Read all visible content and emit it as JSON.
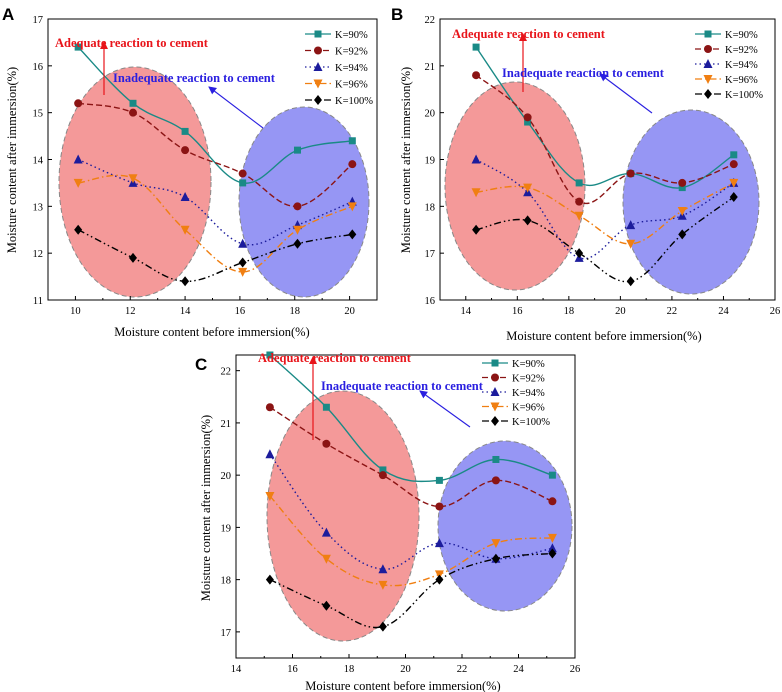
{
  "chart_data": [
    {
      "type": "line",
      "panel_label": "A",
      "xlabel": "Moisture content before immersion(%)",
      "ylabel": "Moisture content after immersion(%)",
      "xlim": [
        9,
        21
      ],
      "ylim": [
        11,
        17
      ],
      "xticks": [
        10,
        12,
        14,
        16,
        18,
        20
      ],
      "yticks": [
        11,
        12,
        13,
        14,
        15,
        16,
        17
      ],
      "annotations": {
        "red": "Adequate reaction to cement",
        "blue": "Inadequate reaction to cement"
      },
      "series": [
        {
          "name": "K=90%",
          "x": [
            10.1,
            12.1,
            14.0,
            16.1,
            18.1,
            20.1
          ],
          "values": [
            16.4,
            15.2,
            14.6,
            13.5,
            14.2,
            14.4
          ]
        },
        {
          "name": "K=92%",
          "x": [
            10.1,
            12.1,
            14.0,
            16.1,
            18.1,
            20.1
          ],
          "values": [
            15.2,
            15.0,
            14.2,
            13.7,
            13.0,
            13.9
          ]
        },
        {
          "name": "K=94%",
          "x": [
            10.1,
            12.1,
            14.0,
            16.1,
            18.1,
            20.1
          ],
          "values": [
            14.0,
            13.5,
            13.2,
            12.2,
            12.6,
            13.1
          ]
        },
        {
          "name": "K=96%",
          "x": [
            10.1,
            12.1,
            14.0,
            16.1,
            18.1,
            20.1
          ],
          "values": [
            13.5,
            13.6,
            12.5,
            11.6,
            12.5,
            13.0
          ]
        },
        {
          "name": "K=100%",
          "x": [
            10.1,
            12.1,
            14.0,
            16.1,
            18.1,
            20.1
          ],
          "values": [
            12.5,
            11.9,
            11.4,
            11.8,
            12.2,
            12.4
          ]
        }
      ]
    },
    {
      "type": "line",
      "panel_label": "B",
      "xlabel": "Moisture content before immersion(%)",
      "ylabel": "Moisture content after immersion(%)",
      "xlim": [
        13,
        26
      ],
      "ylim": [
        16,
        22
      ],
      "xticks": [
        14,
        16,
        18,
        20,
        22,
        24,
        26
      ],
      "yticks": [
        16,
        17,
        18,
        19,
        20,
        21,
        22
      ],
      "annotations": {
        "red": "Adequate reaction to cement",
        "blue": "Inadequate reaction to cement"
      },
      "series": [
        {
          "name": "K=90%",
          "x": [
            14.4,
            16.4,
            18.4,
            20.4,
            22.4,
            24.4
          ],
          "values": [
            21.4,
            19.8,
            18.5,
            18.7,
            18.4,
            19.1
          ]
        },
        {
          "name": "K=92%",
          "x": [
            14.4,
            16.4,
            18.4,
            20.4,
            22.4,
            24.4
          ],
          "values": [
            20.8,
            19.9,
            18.1,
            18.7,
            18.5,
            18.9
          ]
        },
        {
          "name": "K=94%",
          "x": [
            14.4,
            16.4,
            18.4,
            20.4,
            22.4,
            24.4
          ],
          "values": [
            19.0,
            18.3,
            16.9,
            17.6,
            17.8,
            18.5
          ]
        },
        {
          "name": "K=96%",
          "x": [
            14.4,
            16.4,
            18.4,
            20.4,
            22.4,
            24.4
          ],
          "values": [
            18.3,
            18.4,
            17.8,
            17.2,
            17.9,
            18.5
          ]
        },
        {
          "name": "K=100%",
          "x": [
            14.4,
            16.4,
            18.4,
            20.4,
            22.4,
            24.4
          ],
          "values": [
            17.5,
            17.7,
            17.0,
            16.4,
            17.4,
            18.2
          ]
        }
      ]
    },
    {
      "type": "line",
      "panel_label": "C",
      "xlabel": "Moisture content before immersion(%)",
      "ylabel": "Moisture content after immersion(%)",
      "xlim": [
        14,
        26
      ],
      "ylim": [
        16.5,
        22.3
      ],
      "xticks": [
        14,
        16,
        18,
        20,
        22,
        24,
        26
      ],
      "yticks": [
        17,
        18,
        19,
        20,
        21,
        22
      ],
      "annotations": {
        "red": "Adequate reaction to cement",
        "blue": "Inadequate reaction to cement"
      },
      "series": [
        {
          "name": "K=90%",
          "x": [
            15.2,
            17.2,
            19.2,
            21.2,
            23.2,
            25.2
          ],
          "values": [
            22.3,
            21.3,
            20.1,
            19.9,
            20.3,
            20.0
          ]
        },
        {
          "name": "K=92%",
          "x": [
            15.2,
            17.2,
            19.2,
            21.2,
            23.2,
            25.2
          ],
          "values": [
            21.3,
            20.6,
            20.0,
            19.4,
            19.9,
            19.5
          ]
        },
        {
          "name": "K=94%",
          "x": [
            15.2,
            17.2,
            19.2,
            21.2,
            23.2,
            25.2
          ],
          "values": [
            20.4,
            18.9,
            18.2,
            18.7,
            18.4,
            18.6
          ]
        },
        {
          "name": "K=96%",
          "x": [
            15.2,
            17.2,
            19.2,
            21.2,
            23.2,
            25.2
          ],
          "values": [
            19.6,
            18.4,
            17.9,
            18.1,
            18.7,
            18.8
          ]
        },
        {
          "name": "K=100%",
          "x": [
            15.2,
            17.2,
            19.2,
            21.2,
            23.2,
            25.2
          ],
          "values": [
            18.0,
            17.5,
            17.1,
            18.0,
            18.4,
            18.5
          ]
        }
      ]
    }
  ],
  "styles": [
    {
      "color": "#1a8a86",
      "marker": "square",
      "dash": ""
    },
    {
      "color": "#8b1414",
      "marker": "circle",
      "dash": "6,3"
    },
    {
      "color": "#1c1c9c",
      "marker": "triangle",
      "dash": "1.5,3"
    },
    {
      "color": "#f07f12",
      "marker": "tri-down",
      "dash": "7,3,1.5,3"
    },
    {
      "color": "#000000",
      "marker": "diamond",
      "dash": "7,3,1.5,3,1.5,3"
    }
  ],
  "colors": {
    "red_zone": "#f07272",
    "blue_zone": "#6e6ef0",
    "red_arrow": "#e8141a",
    "blue_arrow": "#2a1fe0"
  }
}
